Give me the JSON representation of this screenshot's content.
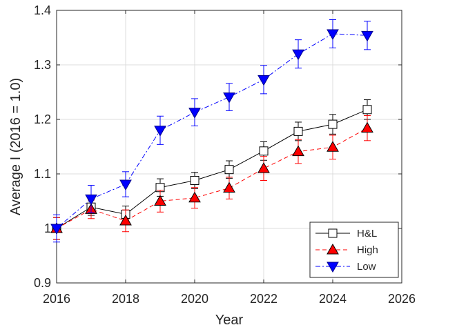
{
  "chart_data": {
    "type": "line",
    "xlabel": "Year",
    "ylabel": "Average I (2016 = 1.0)",
    "xlim": [
      2016,
      2026
    ],
    "ylim": [
      0.9,
      1.4
    ],
    "xticks": [
      2016,
      2018,
      2020,
      2022,
      2024,
      2026
    ],
    "yticks": [
      0.9,
      1,
      1.1,
      1.2,
      1.3,
      1.4
    ],
    "ytick_labels": [
      "0.9",
      "1",
      "1.1",
      "1.2",
      "1.3",
      "1.4"
    ],
    "grid": true,
    "legend_position": "bottom-right",
    "x": [
      2016,
      2017,
      2018,
      2019,
      2020,
      2021,
      2022,
      2023,
      2024,
      2025
    ],
    "series": [
      {
        "name": "H&L",
        "color": "#000000",
        "fill": "#ffffff",
        "marker": "square",
        "line_style": "solid",
        "values": [
          1.0,
          1.039,
          1.026,
          1.075,
          1.088,
          1.108,
          1.142,
          1.178,
          1.191,
          1.218
        ],
        "errors": [
          0.02,
          0.015,
          0.015,
          0.016,
          0.015,
          0.016,
          0.017,
          0.017,
          0.018,
          0.018
        ]
      },
      {
        "name": "High",
        "color": "#ff0000",
        "fill": "#ff0000",
        "marker": "triangle-up",
        "line_style": "dashed",
        "values": [
          1.0,
          1.035,
          1.014,
          1.05,
          1.056,
          1.074,
          1.11,
          1.141,
          1.149,
          1.184
        ],
        "errors": [
          0.02,
          0.017,
          0.02,
          0.02,
          0.019,
          0.02,
          0.022,
          0.022,
          0.022,
          0.023
        ]
      },
      {
        "name": "Low",
        "color": "#0000ff",
        "fill": "#0000ff",
        "marker": "triangle-down",
        "line_style": "dashdot",
        "values": [
          1.0,
          1.054,
          1.081,
          1.18,
          1.213,
          1.241,
          1.273,
          1.32,
          1.357,
          1.354
        ],
        "errors": [
          0.025,
          0.025,
          0.023,
          0.026,
          0.025,
          0.025,
          0.026,
          0.026,
          0.026,
          0.026
        ]
      }
    ]
  }
}
